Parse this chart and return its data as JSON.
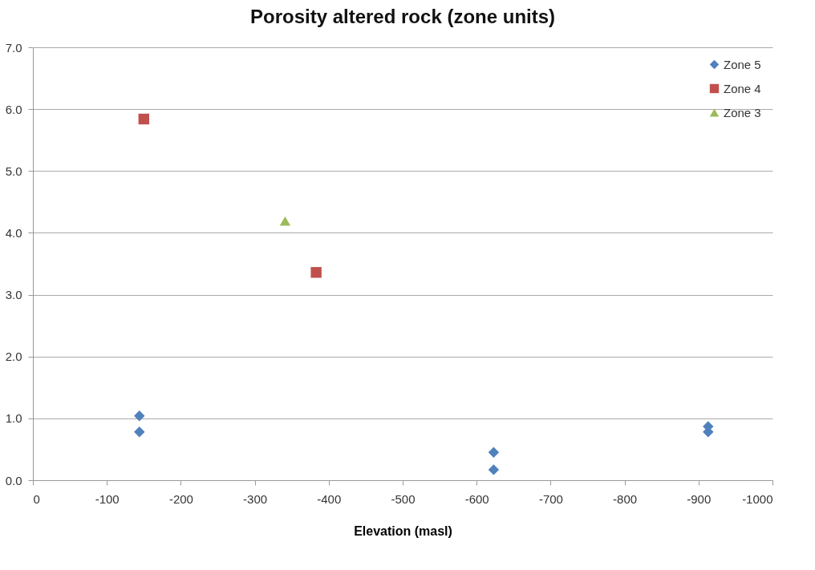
{
  "chart_data": {
    "type": "scatter",
    "title": "Porosity altered rock (zone units)",
    "xlabel": "Elevation (masl)",
    "xlim": [
      0,
      -1000
    ],
    "xticks": [
      0,
      -100,
      -200,
      -300,
      -400,
      -500,
      -600,
      -700,
      -800,
      -900,
      -1000
    ],
    "ylim": [
      0,
      7
    ],
    "yticks": [
      {
        "value": 0,
        "label": "0.0"
      },
      {
        "value": 1,
        "label": "1.0"
      },
      {
        "value": 2,
        "label": "2.0"
      },
      {
        "value": 3,
        "label": "3.0"
      },
      {
        "value": 4,
        "label": "4.0"
      },
      {
        "value": 5,
        "label": "5.0"
      },
      {
        "value": 6,
        "label": "6.0"
      },
      {
        "value": 7,
        "label": "7.0"
      }
    ],
    "grid": "y",
    "legend": "top right",
    "series": [
      {
        "name": "Zone 5",
        "color": "#4f81bd",
        "marker": "diamond",
        "x": [
          -144,
          -144,
          -623,
          -623,
          -913,
          -913
        ],
        "values": [
          1.04,
          0.78,
          0.45,
          0.17,
          0.87,
          0.78
        ]
      },
      {
        "name": "Zone 4",
        "color": "#c0504d",
        "marker": "square",
        "x": [
          -150,
          -383
        ],
        "values": [
          5.84,
          3.36
        ]
      },
      {
        "name": "Zone 3",
        "color": "#9bbb59",
        "marker": "triangle",
        "x": [
          -341
        ],
        "values": [
          4.19
        ]
      }
    ]
  }
}
